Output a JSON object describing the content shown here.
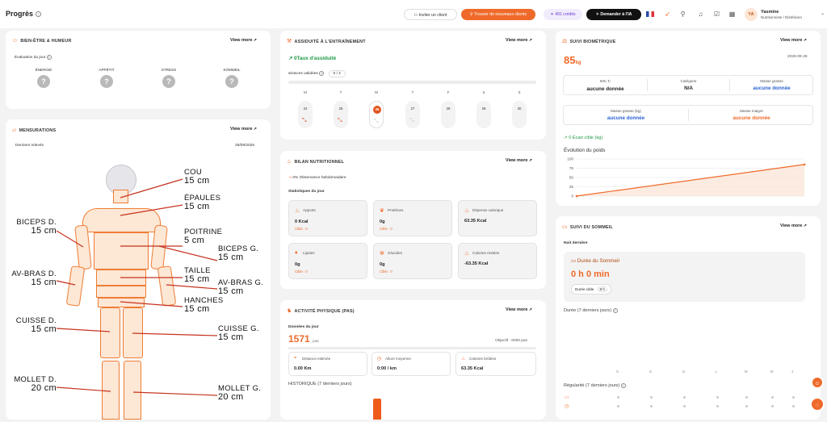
{
  "topbar": {
    "title": "Progrès",
    "help": "?",
    "invite_label": "Inviter un client",
    "find_clients_label": "Trouver de nouveaux clients",
    "credits_label": "491 crédits",
    "ai_label": "Demander à l'IA",
    "user_initials": "YA",
    "user_name": "Yasmine",
    "user_role": "Nutritionniste / Diététicien"
  },
  "common": {
    "view_more": "View more"
  },
  "wellbeing": {
    "title": "Bien-être & Humeur",
    "subtitle": "Évaluation du jour",
    "items": [
      {
        "label": "ÉNERGIE",
        "value": "?"
      },
      {
        "label": "APPÉTIT",
        "value": "?"
      },
      {
        "label": "STRESS",
        "value": "?"
      },
      {
        "label": "SOMMEIL",
        "value": "?"
      }
    ]
  },
  "measurements": {
    "title": "Mensurations",
    "subtitle": "Derniers relevés",
    "date": "26/08/2026",
    "labels": {
      "cou": {
        "name": "COU",
        "value": "15 cm"
      },
      "epaules": {
        "name": "ÉPAULES",
        "value": "15 cm"
      },
      "poitrine": {
        "name": "POITRINE",
        "value": "5 cm"
      },
      "biceps_g": {
        "name": "BICEPS G.",
        "value": "15 cm"
      },
      "taille": {
        "name": "TAILLE",
        "value": "15 cm"
      },
      "avbras_g": {
        "name": "AV-BRAS G.",
        "value": "15 cm"
      },
      "hanches": {
        "name": "HANCHES",
        "value": "15 cm"
      },
      "cuisse_g": {
        "name": "CUISSE G.",
        "value": "15 cm"
      },
      "mollet_g": {
        "name": "MOLLET G.",
        "value": "20 cm"
      },
      "biceps_d": {
        "name": "BICEPS D.",
        "value": "15 cm"
      },
      "avbras_d": {
        "name": "AV-BRAS D.",
        "value": "15 cm"
      },
      "cuisse_d": {
        "name": "CUISSE D.",
        "value": "15 cm"
      },
      "mollet_d": {
        "name": "MOLLET D.",
        "value": "20 cm"
      }
    }
  },
  "training": {
    "title": "Assiduité à l'entraînement",
    "rate_label": "0Taux d'assiduité",
    "sessions_label": "séances validées",
    "sessions_value": "0 / 4",
    "days": [
      {
        "letter": "M",
        "num": "24",
        "state": "missed"
      },
      {
        "letter": "T",
        "num": "25",
        "state": "missed"
      },
      {
        "letter": "W",
        "num": "26",
        "state": "today"
      },
      {
        "letter": "T",
        "num": "27",
        "state": "planned"
      },
      {
        "letter": "F",
        "num": "28",
        "state": "none"
      },
      {
        "letter": "S",
        "num": "29",
        "state": "none"
      },
      {
        "letter": "S",
        "num": "30",
        "state": "none"
      }
    ]
  },
  "nutrition": {
    "title": "Bilan nutritionnel",
    "compliance": "0% Observance hebdomadaire",
    "stats_title": "Statistiques du jour",
    "stats": [
      {
        "label": "Apports",
        "value": "0 Kcal",
        "sub": "Cible : 0",
        "icon": "flame-icon"
      },
      {
        "label": "Protéines",
        "value": "0g",
        "sub": "Cible : 0",
        "icon": "meat-icon"
      },
      {
        "label": "Dépense calorique",
        "value": "63.35 Kcal",
        "sub": "",
        "icon": "flame-icon"
      },
      {
        "label": "Lipides",
        "value": "0g",
        "sub": "Cible : 0",
        "icon": "drop-icon"
      },
      {
        "label": "Glucides",
        "value": "0g",
        "sub": "Cible : 0",
        "icon": "grain-icon"
      },
      {
        "label": "Calories restées",
        "value": "-63.35 Kcal",
        "sub": "",
        "icon": "flame-icon"
      }
    ]
  },
  "activity": {
    "title": "Activité physique (pas)",
    "subtitle": "Données du jour",
    "steps": "1571",
    "steps_unit": "pas",
    "goal": "Objectif : 6000 pas",
    "metrics": [
      {
        "label": "Distance estimée",
        "value": "0.00 Km"
      },
      {
        "label": "Allure moyenne",
        "value": "0:00 / km"
      },
      {
        "label": "Calories brûlées",
        "value": "63.35 Kcal"
      }
    ],
    "history_title": "HISTORIQUE (7 derniers jours)"
  },
  "biometric": {
    "title": "Suivi biométrique",
    "weight": "85",
    "weight_unit": "kg",
    "date": "2026-08-26",
    "imc_label": "IMC",
    "imc_value": "aucune donnée",
    "category_label": "Catégorie",
    "category_value": "N/A",
    "fat_mass_label": "Masse grasse",
    "fat_mass_value": "aucune donnée",
    "fat_mass_kg_label": "Masse grasse (kg)",
    "fat_mass_kg_value": "aucune donnée",
    "lean_mass_label": "Masse maigre",
    "lean_mass_value": "aucune donnée",
    "target_gap": "0 Écart cible (kg)",
    "chart_title": "Évolution du poids"
  },
  "chart_data": {
    "type": "line",
    "title": "Évolution du poids",
    "y_ticks": [
      "100",
      "75",
      "50",
      "25",
      "0"
    ],
    "ylim": [
      0,
      100
    ],
    "series": [
      {
        "values": [
          0,
          85
        ]
      }
    ],
    "colors": {
      "line": "#ef6a2a"
    }
  },
  "sleep": {
    "title": "Suivi du sommeil",
    "subtitle": "Nuit dernière",
    "duration_label": "Durée du Sommeil",
    "duration_value": "0 h 0 min",
    "target_label": "Durée cible",
    "target_value": "8 h",
    "week_title": "Durée (7 derniers jours)",
    "day_letters": [
      "S",
      "S",
      "D",
      "L",
      "M",
      "M",
      "J"
    ],
    "regularity_title": "Régularité (7 derniers jours)"
  },
  "colors": {
    "accent": "#ef6a2a",
    "link": "#2a62d6",
    "success": "#1f9b46"
  }
}
